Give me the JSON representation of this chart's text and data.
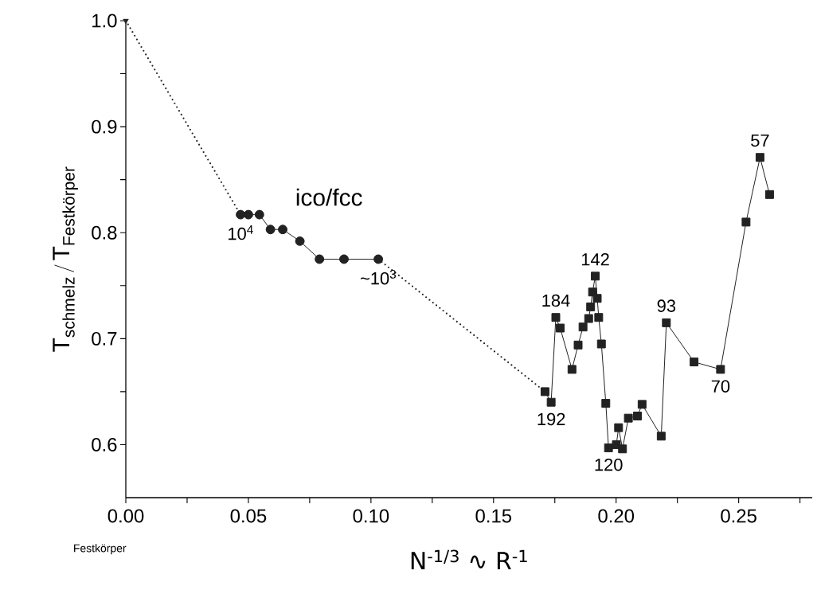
{
  "chart_data": {
    "type": "line",
    "xlabel": "N$^{-1/3}$ ∿ R$^{-1}$",
    "ylabel": "\\mathrm{T}_{\\text{schmelz}}\\,/\\,\\mathrm{T}_{\\text{Festkörper}}",
    "xlim": [
      0,
      0.28
    ],
    "ylim": [
      0.55,
      1.0
    ],
    "xticks": [
      {
        "value": 0,
        "label": "0.00"
      },
      {
        "value": 0.025,
        "label": null
      },
      {
        "value": 0.05,
        "label": "0.05"
      },
      {
        "value": 0.075,
        "label": null
      },
      {
        "value": 0.1,
        "label": "0.10"
      },
      {
        "value": 0.125,
        "label": null
      },
      {
        "value": 0.15,
        "label": "0.15"
      },
      {
        "value": 0.175,
        "label": null
      },
      {
        "value": 0.2,
        "label": "0.20"
      },
      {
        "value": 0.225,
        "label": null
      },
      {
        "value": 0.25,
        "label": "0.25"
      },
      {
        "value": 0.275,
        "label": null
      }
    ],
    "yticks": [
      {
        "value": 0.6,
        "label": "0.6"
      },
      {
        "value": 0.65,
        "label": null
      },
      {
        "value": 0.7,
        "label": "0.7"
      },
      {
        "value": 0.75,
        "label": null
      },
      {
        "value": 0.8,
        "label": "0.8"
      },
      {
        "value": 0.85,
        "label": null
      },
      {
        "value": 0.9,
        "label": "0.9"
      },
      {
        "value": 0.95,
        "label": null
      },
      {
        "value": 1.0,
        "label": "1.0"
      }
    ],
    "series": [
      {
        "type": "scatter",
        "marker": "triangle",
        "color": "#222222",
        "x": [
          0
        ],
        "values": [
          1.0
        ]
      },
      {
        "line_style": "dotted",
        "color": "#222222",
        "x": [
          0,
          0.0468
        ],
        "values": [
          1.0,
          0.817
        ]
      },
      {
        "marker": "circle",
        "line_style": "solid",
        "color": "#222222",
        "x": [
          0.0468,
          0.05,
          0.0545,
          0.059,
          0.064,
          0.071,
          0.079,
          0.089,
          0.103
        ],
        "values": [
          0.817,
          0.817,
          0.817,
          0.803,
          0.803,
          0.792,
          0.775,
          0.775,
          0.775
        ]
      },
      {
        "line_style": "dotted",
        "color": "#222222",
        "x": [
          0.103,
          0.171
        ],
        "values": [
          0.775,
          0.65
        ]
      },
      {
        "marker": "square",
        "line_style": "solid",
        "color": "#222222",
        "x": [
          0.171,
          0.1735,
          0.1754,
          0.1772,
          0.182,
          0.1845,
          0.1865,
          0.1888,
          0.1896,
          0.1904,
          0.1915,
          0.1923,
          0.1929,
          0.194,
          0.1958,
          0.1969,
          0.2001,
          0.201,
          0.2026,
          0.205,
          0.2087,
          0.2106,
          0.2184,
          0.2205,
          0.2318,
          0.2426,
          0.253,
          0.2587,
          0.2626
        ],
        "values": [
          0.65,
          0.64,
          0.72,
          0.71,
          0.671,
          0.694,
          0.711,
          0.719,
          0.73,
          0.744,
          0.759,
          0.738,
          0.72,
          0.695,
          0.639,
          0.597,
          0.6,
          0.616,
          0.596,
          0.625,
          0.627,
          0.638,
          0.608,
          0.715,
          0.678,
          0.671,
          0.81,
          0.871,
          0.836
        ]
      }
    ],
    "annotations": [
      "ico/fcc",
      {
        "text": "10$^{4}$",
        "x": 0.0468,
        "y": 0.817
      },
      {
        "text": "~10$^{3}$",
        "x": 0.103,
        "y": 0.775
      },
      {
        "text": "184",
        "x": 0.1754,
        "y": 0.72
      },
      {
        "text": "142",
        "x": 0.1915,
        "y": 0.759
      },
      {
        "text": "192",
        "x": 0.1735,
        "y": 0.64
      },
      {
        "text": "120",
        "x": 0.1969,
        "y": 0.597
      },
      {
        "text": "93",
        "x": 0.2205,
        "y": 0.715
      },
      {
        "text": "70",
        "x": 0.2426,
        "y": 0.671
      },
      {
        "text": "57",
        "x": 0.2587,
        "y": 0.871
      },
      "Festkörper"
    ]
  }
}
